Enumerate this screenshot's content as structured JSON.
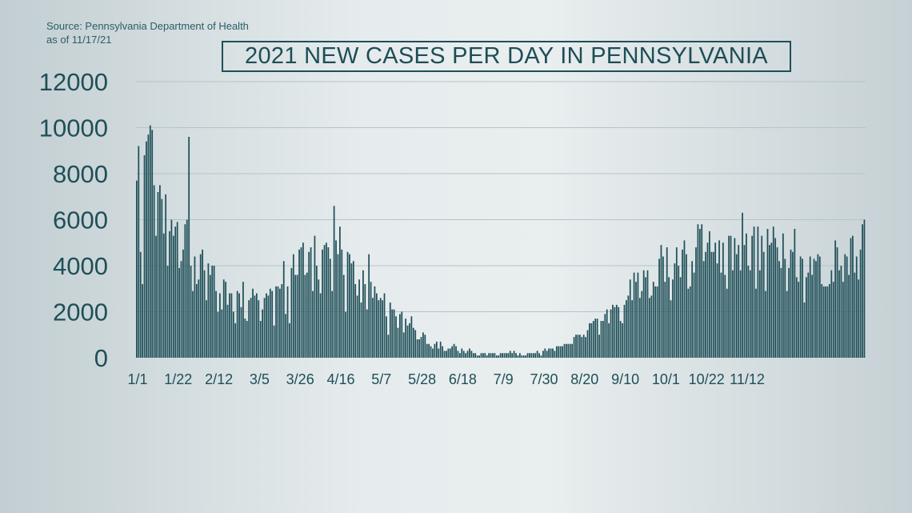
{
  "source": {
    "line1": "Source: Pennsylvania Department of Health",
    "line2": "as of 11/17/21"
  },
  "colors": {
    "bar": "#1f4f58",
    "grid": "#b7c3c7",
    "text": "#1f4f58"
  },
  "chart_data": {
    "type": "bar",
    "title": "2021 NEW CASES PER DAY IN PENNSYLVANIA",
    "xlabel": "",
    "ylabel": "",
    "ylim": [
      0,
      12000
    ],
    "yticks": [
      0,
      2000,
      4000,
      6000,
      8000,
      10000,
      12000
    ],
    "x_start": "1/1",
    "x_end": "11/16",
    "x_tick_labels": [
      "1/1",
      "1/22",
      "2/12",
      "3/5",
      "3/26",
      "4/16",
      "5/7",
      "5/28",
      "6/18",
      "7/9",
      "7/30",
      "8/20",
      "9/10",
      "10/1",
      "10/22",
      "11/12"
    ],
    "grid": true,
    "values": [
      7700,
      9200,
      4600,
      3200,
      8800,
      9400,
      9700,
      10100,
      9900,
      7500,
      5300,
      7200,
      7500,
      6900,
      5400,
      7100,
      4000,
      5500,
      6000,
      5300,
      5700,
      5900,
      3900,
      4200,
      4700,
      5800,
      6000,
      9600,
      4000,
      2900,
      4400,
      3200,
      3400,
      4500,
      4700,
      3800,
      2500,
      4100,
      3600,
      4000,
      4000,
      2900,
      2000,
      2800,
      2100,
      3400,
      3300,
      2300,
      2800,
      2800,
      2000,
      1500,
      2900,
      2800,
      2200,
      3300,
      1700,
      1600,
      2500,
      2600,
      3000,
      2700,
      2800,
      2500,
      1600,
      2100,
      2600,
      2800,
      2700,
      3000,
      2900,
      1400,
      3100,
      3100,
      3000,
      3200,
      4200,
      1900,
      3100,
      1500,
      3900,
      4500,
      3600,
      3600,
      4700,
      4800,
      5000,
      3600,
      3700,
      4600,
      4800,
      2900,
      5300,
      4000,
      3400,
      2800,
      4700,
      4900,
      5000,
      4800,
      4300,
      2900,
      6600,
      5100,
      4500,
      5700,
      4700,
      3600,
      2000,
      4600,
      4500,
      4100,
      4200,
      3200,
      2700,
      3400,
      2400,
      3800,
      3200,
      2100,
      4500,
      3300,
      2600,
      3100,
      2800,
      2500,
      2600,
      2500,
      2800,
      1800,
      1000,
      2400,
      2100,
      2100,
      1800,
      1300,
      1900,
      2000,
      1100,
      1700,
      1400,
      1500,
      1800,
      1300,
      1200,
      800,
      800,
      900,
      1100,
      1000,
      600,
      600,
      500,
      400,
      600,
      700,
      400,
      700,
      500,
      300,
      300,
      400,
      400,
      500,
      600,
      500,
      300,
      200,
      400,
      300,
      200,
      300,
      400,
      300,
      200,
      200,
      100,
      100,
      200,
      200,
      200,
      100,
      200,
      200,
      200,
      200,
      100,
      100,
      200,
      200,
      200,
      200,
      200,
      300,
      200,
      300,
      200,
      100,
      200,
      100,
      100,
      100,
      200,
      200,
      200,
      200,
      200,
      300,
      200,
      100,
      300,
      400,
      300,
      400,
      400,
      400,
      300,
      500,
      500,
      500,
      500,
      600,
      600,
      600,
      600,
      600,
      900,
      1000,
      1000,
      1000,
      900,
      1000,
      900,
      1200,
      1500,
      1500,
      1600,
      1700,
      1700,
      1000,
      1600,
      1600,
      1900,
      2100,
      1500,
      2100,
      2300,
      2200,
      2300,
      2200,
      1600,
      1500,
      2300,
      2500,
      2700,
      3400,
      2500,
      3700,
      3300,
      3700,
      2600,
      2900,
      3800,
      3500,
      3800,
      2600,
      2700,
      3300,
      3100,
      3100,
      4300,
      4900,
      4400,
      3300,
      4800,
      3500,
      2500,
      3400,
      4100,
      4800,
      4000,
      3500,
      4700,
      5100,
      4500,
      3000,
      3100,
      4200,
      3700,
      4800,
      5800,
      5600,
      5800,
      4200,
      4600,
      5000,
      5500,
      4600,
      4600,
      5000,
      4100,
      5100,
      3700,
      5000,
      3600,
      3000,
      5300,
      5300,
      3800,
      5200,
      4500,
      4900,
      3800,
      6300,
      4900,
      5400,
      4000,
      3800,
      5300,
      5700,
      3000,
      5700,
      3800,
      5300,
      4600,
      2900,
      5600,
      4900,
      5000,
      5700,
      5200,
      4800,
      4200,
      3900,
      5400,
      4300,
      2900,
      3900,
      4700,
      4600,
      5600,
      3500,
      3300,
      4400,
      4300,
      2400,
      3500,
      3700,
      4400,
      3600,
      4300,
      4200,
      4500,
      4400,
      3200,
      3100,
      3100,
      3100,
      3200,
      3800,
      3300,
      5100,
      4800,
      3800,
      4000,
      3300,
      4500,
      4400,
      3600,
      5200,
      5300,
      3700,
      4400,
      3400,
      4700,
      5800,
      6000
    ]
  }
}
